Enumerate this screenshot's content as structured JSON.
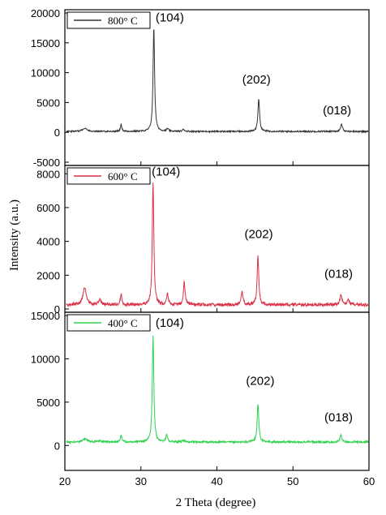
{
  "chart_data": {
    "type": "line",
    "xlabel": "2 Theta (degree)",
    "ylabel": "Intensity (a.u.)",
    "xlim": [
      20,
      60
    ],
    "x_ticks": [
      20,
      30,
      40,
      50,
      60
    ],
    "grid": false,
    "panels": [
      {
        "legend": "800° C",
        "color": "#333333",
        "ylim": [
          -5000,
          20000
        ],
        "y_ticks": [
          -5000,
          0,
          5000,
          10000,
          15000,
          20000
        ],
        "baseline": 150,
        "noise": 120,
        "peaks": [
          {
            "x": 22.6,
            "y": 550,
            "w": 0.35
          },
          {
            "x": 27.4,
            "y": 1100,
            "w": 0.12
          },
          {
            "x": 31.7,
            "y": 17500,
            "w": 0.12
          },
          {
            "x": 33.5,
            "y": 450,
            "w": 0.14
          },
          {
            "x": 35.6,
            "y": 350,
            "w": 0.15
          },
          {
            "x": 45.5,
            "y": 5500,
            "w": 0.13
          },
          {
            "x": 56.4,
            "y": 1200,
            "w": 0.14
          }
        ],
        "annotations": [
          {
            "text": "(104)",
            "x": 33.8,
            "y": 18600
          },
          {
            "text": "(202)",
            "x": 45.2,
            "y": 8200
          },
          {
            "text": "(018)",
            "x": 55.8,
            "y": 3000
          }
        ]
      },
      {
        "legend": "600° C",
        "color": "#d93248",
        "ylim": [
          0,
          8300
        ],
        "y_ticks": [
          0,
          2000,
          4000,
          6000,
          8000
        ],
        "baseline": 250,
        "noise": 90,
        "peaks": [
          {
            "x": 22.6,
            "y": 1050,
            "w": 0.25
          },
          {
            "x": 24.6,
            "y": 300,
            "w": 0.2
          },
          {
            "x": 27.4,
            "y": 650,
            "w": 0.12
          },
          {
            "x": 31.6,
            "y": 7300,
            "w": 0.12
          },
          {
            "x": 33.5,
            "y": 600,
            "w": 0.14
          },
          {
            "x": 35.7,
            "y": 1350,
            "w": 0.13
          },
          {
            "x": 43.3,
            "y": 800,
            "w": 0.14
          },
          {
            "x": 45.4,
            "y": 2850,
            "w": 0.13
          },
          {
            "x": 56.3,
            "y": 600,
            "w": 0.15
          },
          {
            "x": 57.3,
            "y": 250,
            "w": 0.2
          }
        ],
        "annotations": [
          {
            "text": "(104)",
            "x": 33.3,
            "y": 7900
          },
          {
            "text": "(202)",
            "x": 45.5,
            "y": 4200
          },
          {
            "text": "(018)",
            "x": 56.0,
            "y": 1850
          }
        ]
      },
      {
        "legend": "400° C",
        "color": "#2ed24f",
        "ylim": [
          -2500,
          15000
        ],
        "y_ticks": [
          0,
          5000,
          10000,
          15000
        ],
        "baseline": 400,
        "noise": 110,
        "peaks": [
          {
            "x": 22.7,
            "y": 350,
            "w": 0.35
          },
          {
            "x": 24.6,
            "y": 150,
            "w": 0.2
          },
          {
            "x": 27.4,
            "y": 750,
            "w": 0.12
          },
          {
            "x": 31.6,
            "y": 12200,
            "w": 0.12
          },
          {
            "x": 33.4,
            "y": 850,
            "w": 0.13
          },
          {
            "x": 35.6,
            "y": 150,
            "w": 0.2
          },
          {
            "x": 45.4,
            "y": 4400,
            "w": 0.13
          },
          {
            "x": 56.3,
            "y": 800,
            "w": 0.14
          }
        ],
        "annotations": [
          {
            "text": "(104)",
            "x": 33.8,
            "y": 13700
          },
          {
            "text": "(202)",
            "x": 45.7,
            "y": 7000
          },
          {
            "text": "(018)",
            "x": 56.0,
            "y": 2800
          }
        ]
      }
    ]
  }
}
